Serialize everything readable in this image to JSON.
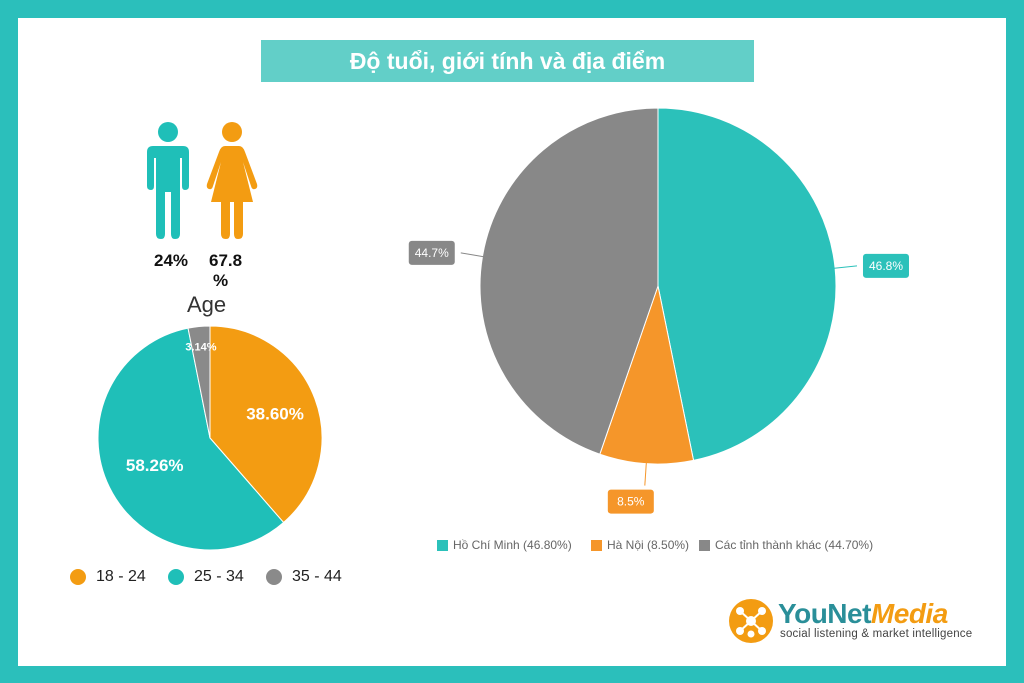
{
  "title": "Độ tuổi, giới tính và địa điểm",
  "gender": {
    "male_pct": "24%",
    "female_pct_line1": "67.8",
    "female_pct_line2": "%",
    "male_color": "#1fbfb8",
    "female_color": "#f39c12"
  },
  "chart_data": [
    {
      "type": "pie",
      "title": "Age",
      "categories": [
        "18 - 24",
        "25 - 34",
        "35 - 44"
      ],
      "values": [
        38.6,
        58.26,
        3.14
      ],
      "labels": [
        "38.60%",
        "58.26%",
        "3.14%"
      ],
      "colors": [
        "#f39c12",
        "#1fbfb8",
        "#8a8a8a"
      ],
      "legend": "bottom"
    },
    {
      "type": "pie",
      "title": "",
      "categories": [
        "Hồ Chí Minh",
        "Hà Nội",
        "Các tỉnh thành khác"
      ],
      "values": [
        46.8,
        8.5,
        44.7
      ],
      "labels": [
        "46.8%",
        "8.5%",
        "44.7%"
      ],
      "legend_labels": [
        "Hồ Chí Minh (46.80%)",
        "Hà Nội (8.50%)",
        "Các tỉnh thành khác (44.70%)"
      ],
      "colors": [
        "#2bc1ba",
        "#f5962a",
        "#888888"
      ],
      "legend": "bottom"
    }
  ],
  "logo": {
    "name_a": "YouNet",
    "name_b": "Media",
    "tagline": "social listening & market intelligence",
    "color_primary": "#2a8f99",
    "color_accent": "#f39c12"
  }
}
